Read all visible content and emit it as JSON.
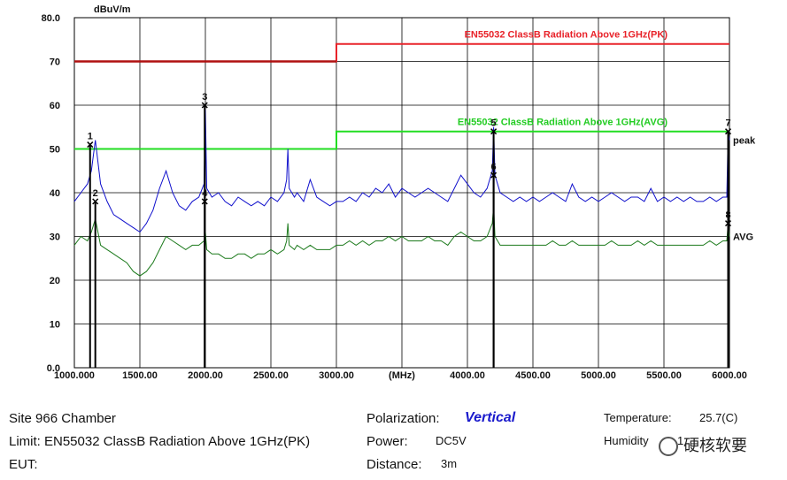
{
  "chart_data": {
    "type": "line",
    "ylabel": "dBuV/m",
    "xlabel": "(MHz)",
    "x_ticks": [
      1000,
      1500,
      2000,
      2500,
      3000,
      3500,
      4000,
      4500,
      5000,
      5500,
      6000
    ],
    "x_tick_labels": [
      "1000.000",
      "1500.00",
      "2000.00",
      "2500.00",
      "3000.00",
      "(MHz)",
      "4000.00",
      "4500.00",
      "5000.00",
      "5500.00",
      "6000.00"
    ],
    "y_ticks": [
      0,
      10,
      20,
      30,
      40,
      50,
      60,
      70,
      80
    ],
    "y_tick_labels": [
      "0.0",
      "10",
      "20",
      "30",
      "40",
      "50",
      "60",
      "70",
      "80.0"
    ],
    "xlim": [
      1000,
      6000
    ],
    "ylim": [
      0,
      80
    ],
    "grid": true,
    "limits": [
      {
        "name": "EN55032 ClassB Radiation Above 1GHz(PK)",
        "color": "#e8232a",
        "x": [
          1000,
          3000,
          3000,
          6000
        ],
        "y": [
          70,
          70,
          74,
          74
        ]
      },
      {
        "name": "EN55032 ClassB Radiation Above 1GHz(AVG)",
        "color": "#22dd22",
        "x": [
          1000,
          3000,
          3000,
          6000
        ],
        "y": [
          50,
          50,
          54,
          54
        ]
      }
    ],
    "series": [
      {
        "name": "peak",
        "color": "#1010cc",
        "x": [
          1000,
          1050,
          1100,
          1130,
          1160,
          1200,
          1250,
          1300,
          1350,
          1400,
          1450,
          1500,
          1550,
          1600,
          1650,
          1700,
          1750,
          1800,
          1850,
          1900,
          1950,
          1990,
          2000,
          2010,
          2050,
          2100,
          2150,
          2200,
          2250,
          2300,
          2350,
          2400,
          2450,
          2500,
          2550,
          2600,
          2620,
          2630,
          2640,
          2680,
          2700,
          2750,
          2800,
          2850,
          2900,
          2950,
          3000,
          3050,
          3100,
          3150,
          3200,
          3250,
          3300,
          3350,
          3400,
          3450,
          3500,
          3550,
          3600,
          3650,
          3700,
          3750,
          3800,
          3850,
          3900,
          3950,
          4000,
          4050,
          4100,
          4150,
          4190,
          4200,
          4210,
          4250,
          4300,
          4350,
          4400,
          4450,
          4500,
          4550,
          4600,
          4650,
          4700,
          4750,
          4800,
          4850,
          4900,
          4950,
          5000,
          5050,
          5100,
          5150,
          5200,
          5250,
          5300,
          5350,
          5400,
          5450,
          5500,
          5550,
          5600,
          5650,
          5700,
          5750,
          5800,
          5850,
          5900,
          5950,
          5980,
          5990,
          6000
        ],
        "y": [
          38,
          40,
          42,
          45,
          52,
          42,
          38,
          35,
          34,
          33,
          32,
          31,
          33,
          36,
          41,
          45,
          40,
          37,
          36,
          38,
          39,
          42,
          59,
          41,
          39,
          40,
          38,
          37,
          39,
          38,
          37,
          38,
          37,
          39,
          38,
          40,
          43,
          50,
          41,
          39,
          40,
          38,
          43,
          39,
          38,
          37,
          38,
          38,
          39,
          38,
          40,
          39,
          41,
          40,
          42,
          39,
          41,
          40,
          39,
          40,
          41,
          40,
          39,
          38,
          41,
          44,
          42,
          40,
          39,
          41,
          45,
          55,
          44,
          40,
          39,
          38,
          39,
          38,
          39,
          38,
          39,
          40,
          39,
          38,
          42,
          39,
          38,
          39,
          38,
          39,
          40,
          39,
          38,
          39,
          39,
          38,
          41,
          38,
          39,
          38,
          39,
          38,
          39,
          38,
          38,
          39,
          38,
          39,
          39,
          54,
          52
        ]
      },
      {
        "name": "AVG",
        "color": "#1c7a1c",
        "x": [
          1000,
          1050,
          1100,
          1130,
          1160,
          1200,
          1250,
          1300,
          1350,
          1400,
          1450,
          1500,
          1550,
          1600,
          1650,
          1700,
          1750,
          1800,
          1850,
          1900,
          1950,
          1990,
          2000,
          2010,
          2050,
          2100,
          2150,
          2200,
          2250,
          2300,
          2350,
          2400,
          2450,
          2500,
          2550,
          2600,
          2620,
          2630,
          2640,
          2680,
          2700,
          2750,
          2800,
          2850,
          2900,
          2950,
          3000,
          3050,
          3100,
          3150,
          3200,
          3250,
          3300,
          3350,
          3400,
          3450,
          3500,
          3550,
          3600,
          3650,
          3700,
          3750,
          3800,
          3850,
          3900,
          3950,
          4000,
          4050,
          4100,
          4150,
          4190,
          4200,
          4210,
          4250,
          4300,
          4350,
          4400,
          4450,
          4500,
          4550,
          4600,
          4650,
          4700,
          4750,
          4800,
          4850,
          4900,
          4950,
          5000,
          5050,
          5100,
          5150,
          5200,
          5250,
          5300,
          5350,
          5400,
          5450,
          5500,
          5550,
          5600,
          5650,
          5700,
          5750,
          5800,
          5850,
          5900,
          5950,
          5980,
          5990,
          6000
        ],
        "y": [
          28,
          30,
          29,
          31,
          34,
          28,
          27,
          26,
          25,
          24,
          22,
          21,
          22,
          24,
          27,
          30,
          29,
          28,
          27,
          28,
          28,
          29,
          31,
          27,
          26,
          26,
          25,
          25,
          26,
          26,
          25,
          26,
          26,
          27,
          26,
          27,
          29,
          33,
          28,
          27,
          28,
          27,
          28,
          27,
          27,
          27,
          28,
          28,
          29,
          28,
          29,
          28,
          29,
          29,
          30,
          29,
          30,
          29,
          29,
          29,
          30,
          29,
          29,
          28,
          30,
          31,
          30,
          29,
          29,
          30,
          33,
          37,
          30,
          28,
          28,
          28,
          28,
          28,
          28,
          28,
          28,
          29,
          28,
          28,
          29,
          28,
          28,
          28,
          28,
          28,
          29,
          28,
          28,
          28,
          29,
          28,
          29,
          28,
          28,
          28,
          28,
          28,
          28,
          28,
          28,
          29,
          28,
          29,
          29,
          33,
          30
        ]
      }
    ],
    "markers": [
      {
        "label": "1",
        "x": 1120,
        "y": 51
      },
      {
        "label": "2",
        "x": 1160,
        "y": 38
      },
      {
        "label": "3",
        "x": 1995,
        "y": 60
      },
      {
        "label": "4",
        "x": 1995,
        "y": 38
      },
      {
        "label": "5",
        "x": 4200,
        "y": 54
      },
      {
        "label": "6",
        "x": 4200,
        "y": 44
      },
      {
        "label": "7",
        "x": 5990,
        "y": 54
      },
      {
        "label": "8",
        "x": 5990,
        "y": 33
      }
    ]
  },
  "info": {
    "site": "Site  966 Chamber",
    "limit": "Limit:  EN55032 ClassB Radiation Above 1GHz(PK)",
    "eut": "EUT:",
    "polarization_label": "Polarization:",
    "polarization_value": "Vertical",
    "power_label": "Power:",
    "power_value": "DC5V",
    "distance_label": "Distance:",
    "distance_value": "3m",
    "temperature_label": "Temperature:",
    "temperature_value": "25.7(C)",
    "humidity_label": "Humidity",
    "humidity_value": "1"
  },
  "watermark": "硬核软要"
}
